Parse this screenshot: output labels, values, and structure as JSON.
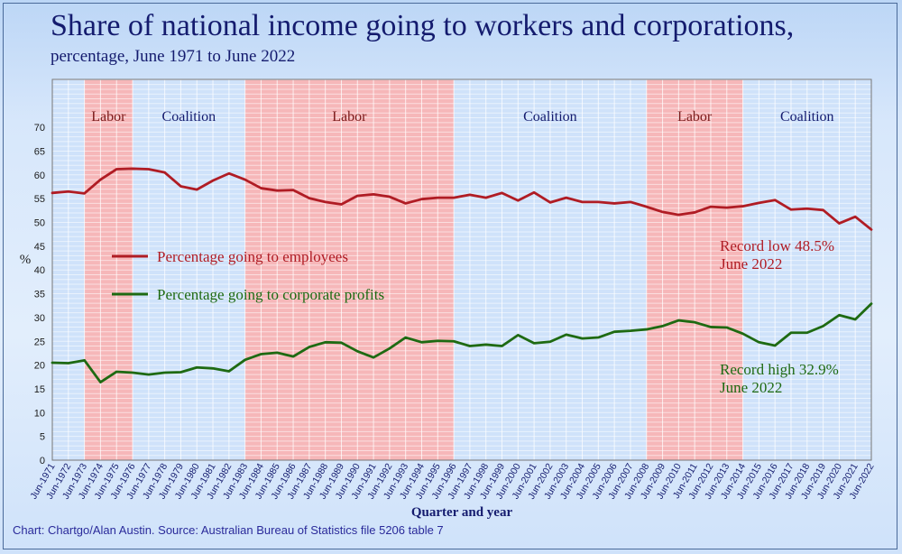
{
  "header": {
    "title": "Share of national income going to workers and corporations,",
    "subtitle": "percentage, June 1971 to June 2022"
  },
  "footer": {
    "source": "Chart: Chartgo/Alan Austin. Source: Australian Bureau of Statistics file 5206 table 7"
  },
  "colors": {
    "employees": "#b01c24",
    "profits": "#1e6a12",
    "labor_band": "#f6b7b9",
    "coalition_band": "#cfe2fa",
    "axis_text": "#141b6e"
  },
  "chart_data": {
    "type": "line",
    "title": "Share of national income going to workers and corporations,",
    "subtitle": "percentage, June 1971 to June 2022",
    "xlabel": "Quarter and year",
    "ylabel": "%",
    "ylim": [
      0,
      70
    ],
    "yticks": [
      0,
      5,
      10,
      15,
      20,
      25,
      30,
      35,
      40,
      45,
      50,
      55,
      60,
      65,
      70
    ],
    "grid": true,
    "legend_position": "center-left",
    "categories": [
      "Jun-1971",
      "Jun-1972",
      "Jun-1973",
      "Jun-1974",
      "Jun-1975",
      "Jun-1976",
      "Jun-1977",
      "Jun-1978",
      "Jun-1979",
      "Jun-1980",
      "Jun-1981",
      "Jun-1982",
      "Jun-1983",
      "Jun-1984",
      "Jun-1985",
      "Jun-1986",
      "Jun-1987",
      "Jun-1988",
      "Jun-1989",
      "Jun-1990",
      "Jun-1991",
      "Jun-1992",
      "Jun-1993",
      "Jun-1994",
      "Jun-1995",
      "Jun-1996",
      "Jun-1997",
      "Jun-1998",
      "Jun-1999",
      "Jun-2000",
      "Jun-2001",
      "Jun-2002",
      "Jun-2003",
      "Jun-2004",
      "Jun-2005",
      "Jun-2006",
      "Jun-2007",
      "Jun-2008",
      "Jun-2009",
      "Jun-2010",
      "Jun-2011",
      "Jun-2012",
      "Jun-2013",
      "Jun-2014",
      "Jun-2015",
      "Jun-2016",
      "Jun-2017",
      "Jun-2018",
      "Jun-2019",
      "Jun-2020",
      "Jun-2021",
      "Jun-2022"
    ],
    "series": [
      {
        "name": "Percentage going to employees",
        "color": "#b01c24",
        "values": [
          56.2,
          56.5,
          56.1,
          59.0,
          61.2,
          61.3,
          61.2,
          60.5,
          57.6,
          56.9,
          58.8,
          60.3,
          59.0,
          57.2,
          56.7,
          56.8,
          55.1,
          54.3,
          53.8,
          55.6,
          55.9,
          55.4,
          54.0,
          54.9,
          55.2,
          55.2,
          55.8,
          55.2,
          56.2,
          54.6,
          56.3,
          54.2,
          55.2,
          54.3,
          54.3,
          54.0,
          54.3,
          53.3,
          52.2,
          51.6,
          52.1,
          53.3,
          53.1,
          53.4,
          54.1,
          54.7,
          52.7,
          52.9,
          52.6,
          49.8,
          51.2,
          48.5
        ]
      },
      {
        "name": "Percentage going to corporate profits",
        "color": "#1e6a12",
        "values": [
          20.5,
          20.4,
          21.0,
          16.4,
          18.6,
          18.4,
          18.0,
          18.4,
          18.5,
          19.5,
          19.3,
          18.7,
          21.1,
          22.3,
          22.6,
          21.8,
          23.8,
          24.8,
          24.7,
          22.9,
          21.6,
          23.5,
          25.8,
          24.8,
          25.1,
          25.0,
          24.0,
          24.3,
          24.0,
          26.3,
          24.6,
          24.9,
          26.4,
          25.6,
          25.8,
          27.0,
          27.2,
          27.5,
          28.2,
          29.4,
          29.0,
          28.0,
          27.9,
          26.6,
          24.8,
          24.1,
          26.8,
          26.8,
          28.2,
          30.5,
          29.6,
          32.9
        ]
      }
    ],
    "bands": [
      {
        "label": "Labor",
        "from": "Jun-1973",
        "to": "Jun-1976",
        "type": "labor"
      },
      {
        "label": "Coalition",
        "from": "Jun-1976",
        "to": "Jun-1983",
        "type": "coalition"
      },
      {
        "label": "Labor",
        "from": "Jun-1983",
        "to": "Jun-1996",
        "type": "labor"
      },
      {
        "label": "Coalition",
        "from": "Jun-1996",
        "to": "Jun-2008",
        "type": "coalition"
      },
      {
        "label": "Labor",
        "from": "Jun-2008",
        "to": "Jun-2014",
        "type": "labor"
      },
      {
        "label": "Coalition",
        "from": "Jun-2014",
        "to": "Jun-2022",
        "type": "coalition"
      }
    ],
    "annotations": [
      {
        "series": 0,
        "lines": [
          "Record low 48.5%",
          "June 2022"
        ]
      },
      {
        "series": 1,
        "lines": [
          "Record high 32.9%",
          "June 2022"
        ]
      }
    ]
  }
}
